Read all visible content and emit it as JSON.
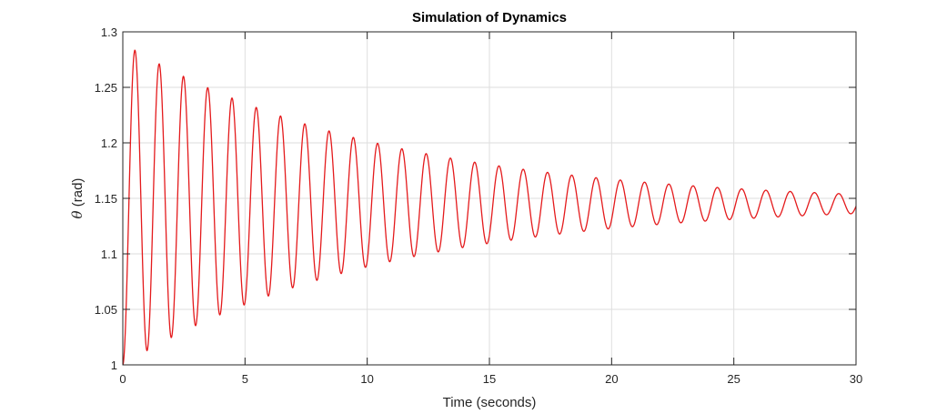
{
  "chart_data": {
    "type": "line",
    "title": "Simulation of Dynamics",
    "xlabel": "Time (seconds)",
    "ylabel_symbol": "θ",
    "ylabel": " (rad)",
    "xlim": [
      0,
      30
    ],
    "ylim": [
      1,
      1.3
    ],
    "xticks": [
      0,
      5,
      10,
      15,
      20,
      25,
      30
    ],
    "yticks": [
      1,
      1.05,
      1.1,
      1.15,
      1.2,
      1.25,
      1.3
    ],
    "grid": true,
    "series": [
      {
        "color": "#e41a1c",
        "model": {
          "kind": "damped-sinusoid",
          "equilibrium": 1.145,
          "start": 1.0,
          "period": 0.993,
          "decay_rate": 0.0938
        },
        "peaks": [
          [
            0.5,
            1.277
          ],
          [
            1.5,
            1.264
          ],
          [
            2.5,
            1.253
          ],
          [
            3.5,
            1.242
          ],
          [
            4.5,
            1.233
          ],
          [
            5.5,
            1.224
          ],
          [
            6.5,
            1.216
          ],
          [
            7.5,
            1.209
          ],
          [
            8.5,
            1.202
          ],
          [
            9.5,
            1.197
          ],
          [
            10.5,
            1.192
          ],
          [
            11.5,
            1.187
          ],
          [
            12.5,
            1.183
          ],
          [
            13.5,
            1.179
          ],
          [
            14.5,
            1.176
          ],
          [
            15.4,
            1.173
          ],
          [
            16.4,
            1.17
          ],
          [
            17.4,
            1.168
          ],
          [
            18.4,
            1.165
          ],
          [
            19.4,
            1.163
          ],
          [
            20.4,
            1.161
          ],
          [
            21.4,
            1.16
          ],
          [
            22.4,
            1.158
          ],
          [
            23.4,
            1.157
          ],
          [
            24.4,
            1.156
          ],
          [
            25.4,
            1.154
          ],
          [
            26.4,
            1.153
          ],
          [
            27.4,
            1.152
          ],
          [
            28.4,
            1.151
          ],
          [
            29.4,
            1.15
          ]
        ],
        "troughs": [
          [
            0,
            1.0
          ],
          [
            1.0,
            1.015
          ],
          [
            2.0,
            1.027
          ],
          [
            3.0,
            1.039
          ],
          [
            4.0,
            1.049
          ],
          [
            5.0,
            1.058
          ],
          [
            6.0,
            1.067
          ],
          [
            7.0,
            1.075
          ],
          [
            8.0,
            1.082
          ],
          [
            9.0,
            1.089
          ],
          [
            10.0,
            1.094
          ],
          [
            11.0,
            1.1
          ],
          [
            12.0,
            1.105
          ],
          [
            13.0,
            1.109
          ],
          [
            14.0,
            1.113
          ],
          [
            14.9,
            1.116
          ],
          [
            15.9,
            1.119
          ],
          [
            16.9,
            1.122
          ],
          [
            17.9,
            1.125
          ],
          [
            18.9,
            1.127
          ],
          [
            19.9,
            1.129
          ],
          [
            20.9,
            1.131
          ],
          [
            21.9,
            1.132
          ],
          [
            22.9,
            1.134
          ],
          [
            23.9,
            1.135
          ],
          [
            24.9,
            1.136
          ],
          [
            25.9,
            1.137
          ],
          [
            26.9,
            1.138
          ],
          [
            27.9,
            1.139
          ],
          [
            28.9,
            1.139
          ],
          [
            29.9,
            1.14
          ]
        ]
      }
    ]
  }
}
